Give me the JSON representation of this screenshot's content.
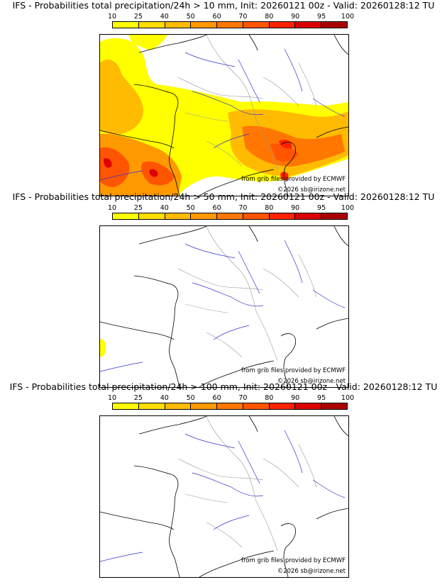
{
  "colorbar": {
    "ticks": [
      "10",
      "25",
      "40",
      "50",
      "60",
      "70",
      "80",
      "90",
      "95",
      "100"
    ],
    "colors": [
      "#ffff00",
      "#ffdd00",
      "#ffbb00",
      "#ff9900",
      "#ff7700",
      "#ff5500",
      "#ff2200",
      "#dd0000",
      "#aa0000",
      "#770000"
    ]
  },
  "panels": [
    {
      "title": "IFS - Probabilities total precipitation/24h > 10 mm, Init: 20260121 00z - Valid: 20260128:12 TU",
      "credit_source": "from grib files provided by ECMWF",
      "credit_copyright": "©2026 sb@irizone.net"
    },
    {
      "title": "IFS - Probabilities total precipitation/24h > 50 mm, Init: 20260121 00z - Valid: 20260128:12 TU",
      "credit_source": "from grib files provided by ECMWF",
      "credit_copyright": "©2026 sb@irizone.net"
    },
    {
      "title": "IFS - Probabilities total precipitation/24h > 100 mm, Init: 20260121 00z - Valid: 20260128:12 TU",
      "credit_source": "from grib files provided by ECMWF",
      "credit_copyright": "©2026 sb@irizone.net"
    }
  ]
}
